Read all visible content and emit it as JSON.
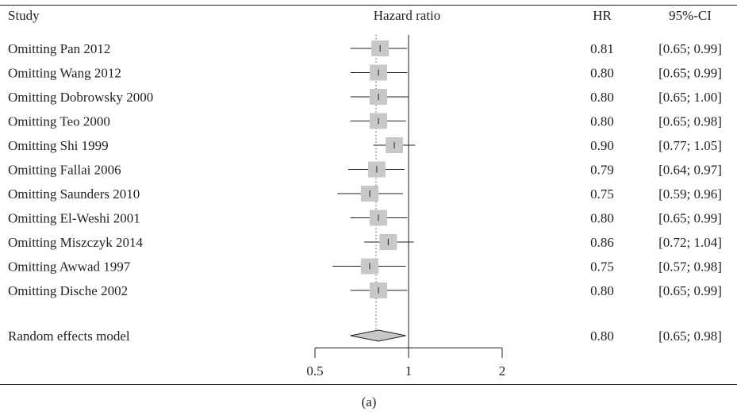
{
  "chart_data": {
    "type": "forest",
    "columns": {
      "study": "Study",
      "effect": "Hazard ratio",
      "hr": "HR",
      "ci": "95%-CI"
    },
    "log_scale": true,
    "x_ticks": [
      "0.5",
      "1",
      "2"
    ],
    "x_range": [
      0.5,
      2
    ],
    "reference_line": 1,
    "marker_color": "#c8c8c8",
    "rows": [
      {
        "label": "Omitting Pan 2012",
        "hr": 0.81,
        "lo": 0.65,
        "hi": 0.99,
        "hr_text": "0.81",
        "ci_text": "[0.65; 0.99]"
      },
      {
        "label": "Omitting Wang 2012",
        "hr": 0.8,
        "lo": 0.65,
        "hi": 0.99,
        "hr_text": "0.80",
        "ci_text": "[0.65; 0.99]"
      },
      {
        "label": "Omitting Dobrowsky 2000",
        "hr": 0.8,
        "lo": 0.65,
        "hi": 1.0,
        "hr_text": "0.80",
        "ci_text": "[0.65; 1.00]"
      },
      {
        "label": "Omitting Teo 2000",
        "hr": 0.8,
        "lo": 0.65,
        "hi": 0.98,
        "hr_text": "0.80",
        "ci_text": "[0.65; 0.98]"
      },
      {
        "label": "Omitting Shi 1999",
        "hr": 0.9,
        "lo": 0.77,
        "hi": 1.05,
        "hr_text": "0.90",
        "ci_text": "[0.77; 1.05]"
      },
      {
        "label": "Omitting Fallai 2006",
        "hr": 0.79,
        "lo": 0.64,
        "hi": 0.97,
        "hr_text": "0.79",
        "ci_text": "[0.64; 0.97]"
      },
      {
        "label": "Omitting Saunders 2010",
        "hr": 0.75,
        "lo": 0.59,
        "hi": 0.96,
        "hr_text": "0.75",
        "ci_text": "[0.59; 0.96]"
      },
      {
        "label": "Omitting El-Weshi 2001",
        "hr": 0.8,
        "lo": 0.65,
        "hi": 0.99,
        "hr_text": "0.80",
        "ci_text": "[0.65; 0.99]"
      },
      {
        "label": "Omitting Miszczyk 2014",
        "hr": 0.86,
        "lo": 0.72,
        "hi": 1.04,
        "hr_text": "0.86",
        "ci_text": "[0.72; 1.04]"
      },
      {
        "label": "Omitting Awwad 1997",
        "hr": 0.75,
        "lo": 0.57,
        "hi": 0.98,
        "hr_text": "0.75",
        "ci_text": "[0.57; 0.98]"
      },
      {
        "label": "Omitting Dische 2002",
        "hr": 0.8,
        "lo": 0.65,
        "hi": 0.99,
        "hr_text": "0.80",
        "ci_text": "[0.65; 0.99]"
      }
    ],
    "summary": {
      "label": "Random effects model",
      "hr": 0.8,
      "lo": 0.65,
      "hi": 0.98,
      "hr_text": "0.80",
      "ci_text": "[0.65; 0.98]"
    },
    "panel_label": "(a)"
  }
}
